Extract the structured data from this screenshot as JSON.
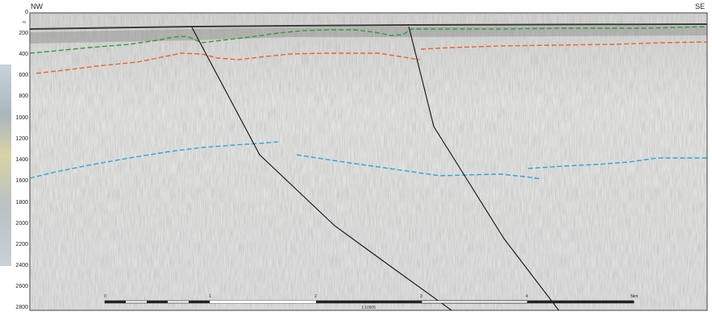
{
  "section": {
    "left_label": "NW",
    "right_label": "SE",
    "depth_unit": "m",
    "depth_ticks": [
      "0",
      "200",
      "400",
      "600",
      "800",
      "1000",
      "1200",
      "1400",
      "1600",
      "1800",
      "2000",
      "2200",
      "2400",
      "2600",
      "2800"
    ],
    "scale_ticks": [
      "0",
      "1",
      "2",
      "3",
      "4",
      "5km"
    ],
    "scale_ratio": "1:10905"
  },
  "colors": {
    "green_horizon": "#2e9e3c",
    "orange_horizon": "#e8662a",
    "blue_horizon": "#2aa5df",
    "fault": "#111111"
  }
}
